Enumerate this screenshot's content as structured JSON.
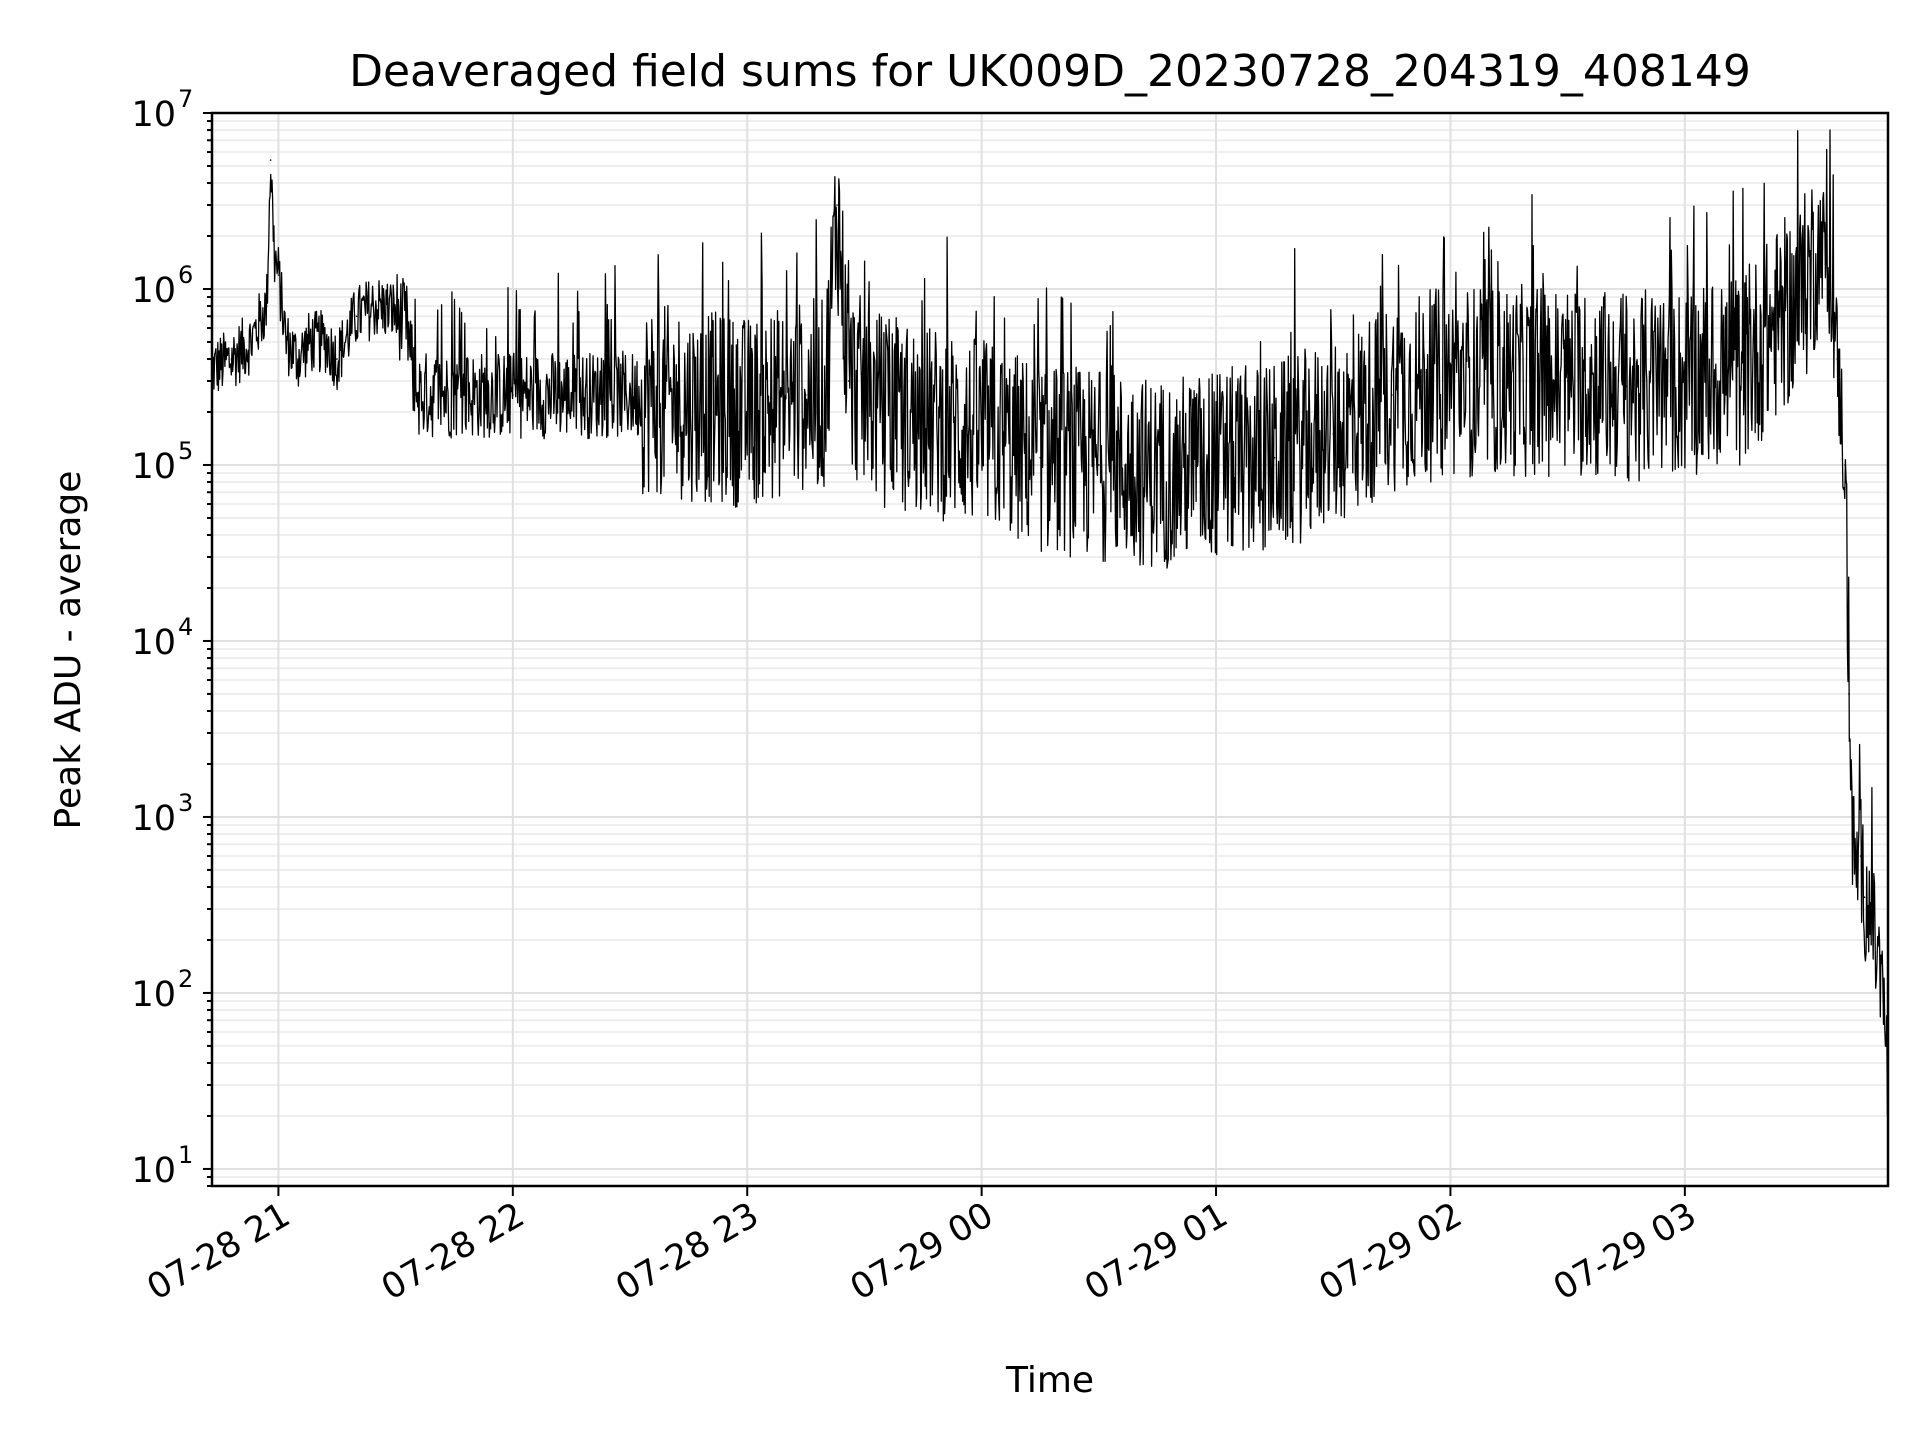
{
  "chart_data": {
    "type": "line",
    "title": "Deaveraged field sums for UK009D_20230728_204319_408149",
    "xlabel": "Time",
    "ylabel": "Peak ADU - average",
    "yscale": "log",
    "ylim": [
      8,
      10000000
    ],
    "xlim": [
      "2023-07-28 20:43",
      "2023-07-29 03:52"
    ],
    "y_ticks": [
      {
        "base": "10",
        "exp": "1",
        "value": 10
      },
      {
        "base": "10",
        "exp": "2",
        "value": 100
      },
      {
        "base": "10",
        "exp": "3",
        "value": 1000
      },
      {
        "base": "10",
        "exp": "4",
        "value": 10000
      },
      {
        "base": "10",
        "exp": "5",
        "value": 100000
      },
      {
        "base": "10",
        "exp": "6",
        "value": 1000000
      },
      {
        "base": "10",
        "exp": "7",
        "value": 10000000
      }
    ],
    "x_ticks": [
      {
        "label": "07-28 21",
        "value": "2023-07-28 21:00"
      },
      {
        "label": "07-28 22",
        "value": "2023-07-28 22:00"
      },
      {
        "label": "07-28 23",
        "value": "2023-07-28 23:00"
      },
      {
        "label": "07-29 00",
        "value": "2023-07-29 00:00"
      },
      {
        "label": "07-29 01",
        "value": "2023-07-29 01:00"
      },
      {
        "label": "07-29 02",
        "value": "2023-07-29 02:00"
      },
      {
        "label": "07-29 03",
        "value": "2023-07-29 03:00"
      }
    ],
    "grid": true,
    "legend": "none",
    "line_color": "#000000",
    "series": [
      {
        "x": [
          "2023-07-28 20:43",
          "2023-07-28 20:48",
          "2023-07-28 20:53",
          "2023-07-28 20:57",
          "2023-07-28 20:58",
          "2023-07-28 20:59",
          "2023-07-28 21:00",
          "2023-07-28 21:02",
          "2023-07-28 21:05",
          "2023-07-28 21:08",
          "2023-07-28 21:12",
          "2023-07-28 21:15",
          "2023-07-28 21:20",
          "2023-07-28 21:25",
          "2023-07-28 21:30",
          "2023-07-28 21:33",
          "2023-07-28 21:35",
          "2023-07-28 21:45",
          "2023-07-28 22:00",
          "2023-07-28 22:15",
          "2023-07-28 22:30",
          "2023-07-28 22:45",
          "2023-07-28 23:00",
          "2023-07-28 23:15",
          "2023-07-28 23:20",
          "2023-07-28 23:23",
          "2023-07-28 23:26",
          "2023-07-28 23:35",
          "2023-07-28 23:45",
          "2023-07-29 00:00",
          "2023-07-29 00:15",
          "2023-07-29 00:30",
          "2023-07-29 00:45",
          "2023-07-29 01:00",
          "2023-07-29 01:15",
          "2023-07-29 01:30",
          "2023-07-29 01:45",
          "2023-07-29 02:00",
          "2023-07-29 02:15",
          "2023-07-29 02:30",
          "2023-07-29 02:45",
          "2023-07-29 03:00",
          "2023-07-29 03:15",
          "2023-07-29 03:25",
          "2023-07-29 03:30",
          "2023-07-29 03:35",
          "2023-07-29 03:37",
          "2023-07-29 03:39",
          "2023-07-29 03:41",
          "2023-07-29 03:42",
          "2023-07-29 03:43",
          "2023-07-29 03:44",
          "2023-07-29 03:45",
          "2023-07-29 03:46",
          "2023-07-29 03:47",
          "2023-07-29 03:48",
          "2023-07-29 03:50",
          "2023-07-29 03:51",
          "2023-07-29 03:52"
        ],
        "y": [
          350000,
          400000,
          500000,
          800000,
          5400000,
          1500000,
          1200000,
          500000,
          400000,
          500000,
          500000,
          400000,
          700000,
          800000,
          750000,
          600000,
          250000,
          250000,
          250000,
          250000,
          250000,
          220000,
          200000,
          250000,
          250000,
          3000000,
          300000,
          200000,
          180000,
          150000,
          110000,
          100000,
          90000,
          100000,
          110000,
          150000,
          250000,
          300000,
          300000,
          300000,
          280000,
          300000,
          350000,
          700000,
          900000,
          2000000,
          1200000,
          400000,
          100000,
          5000,
          700,
          500,
          600,
          350,
          300,
          250,
          120,
          80,
          30
        ]
      }
    ]
  }
}
